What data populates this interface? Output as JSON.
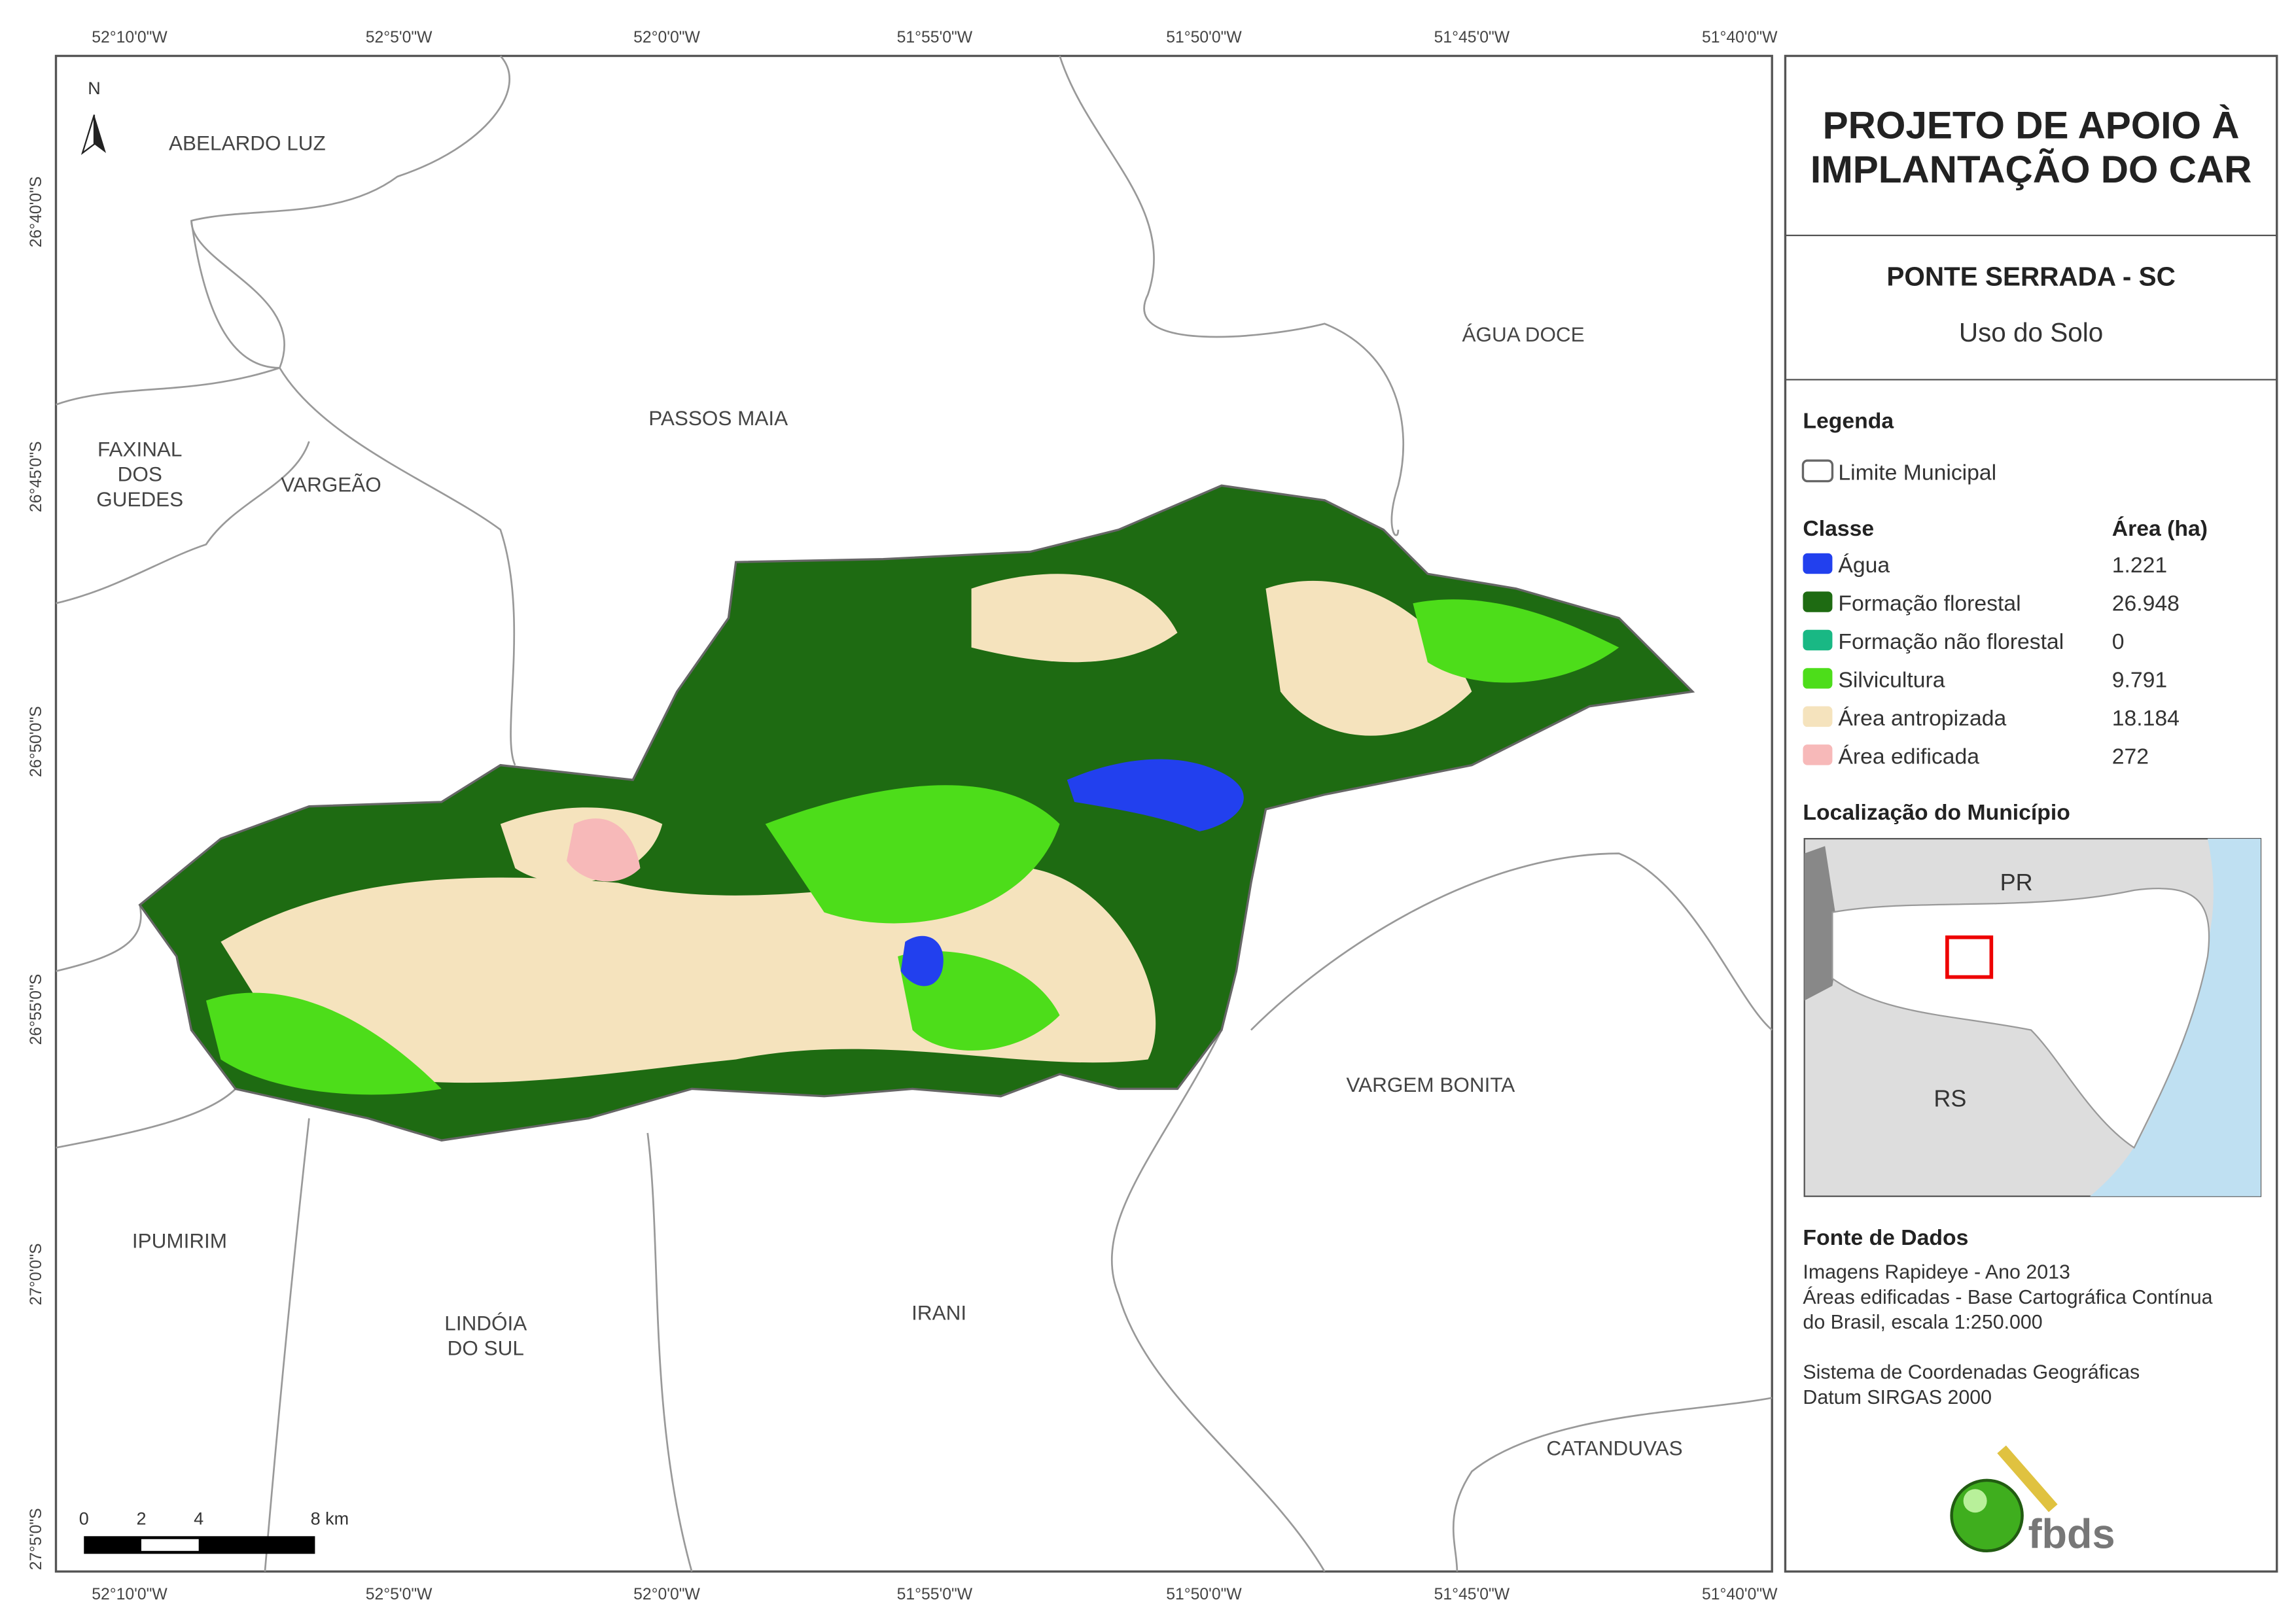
{
  "coords": {
    "top": [
      "52°10'0\"W",
      "52°5'0\"W",
      "52°0'0\"W",
      "51°55'0\"W",
      "51°50'0\"W",
      "51°45'0\"W",
      "51°40'0\"W"
    ],
    "left": [
      "26°40'0\"S",
      "26°45'0\"S",
      "26°50'0\"S",
      "26°55'0\"S",
      "27°0'0\"S",
      "27°5'0\"S"
    ]
  },
  "municipalities": [
    {
      "label": "ABELARDO LUZ"
    },
    {
      "label": "ÁGUA DOCE"
    },
    {
      "label": "PASSOS MAIA"
    },
    {
      "label": "FAXINAL"
    },
    {
      "label": "DOS"
    },
    {
      "label": "GUEDES"
    },
    {
      "label": "VARGEÃO"
    },
    {
      "label": "VARGEM BONITA"
    },
    {
      "label": "IPUMIRIM"
    },
    {
      "label": "LINDÓIA"
    },
    {
      "label": "DO SUL"
    },
    {
      "label": "IRANI"
    },
    {
      "label": "CATANDUVAS"
    }
  ],
  "north": "N",
  "scale": [
    "0",
    "2",
    "4",
    "8 km"
  ],
  "panel": {
    "title_lines": [
      "PROJETO DE APOIO À",
      "IMPLANTAÇÃO DO CAR"
    ],
    "place": "PONTE SERRADA - SC",
    "subtitle": "Uso do Solo",
    "legend_title": "Legenda",
    "boundary": "Limite Municipal",
    "class_header": "Classe",
    "area_header": "Área (ha)",
    "classes": [
      {
        "name": "Água",
        "area": "1.221",
        "color": "#2240ee"
      },
      {
        "name": "Formação florestal",
        "area": "26.948",
        "color": "#1e6b12"
      },
      {
        "name": "Formação não florestal",
        "area": "0",
        "color": "#19b884"
      },
      {
        "name": "Silvicultura",
        "area": "9.791",
        "color": "#4ddd1a"
      },
      {
        "name": "Área antropizada",
        "area": "18.184",
        "color": "#f5e3bd"
      },
      {
        "name": "Área edificada",
        "area": "272",
        "color": "#f7b9b9"
      }
    ],
    "location_title": "Localização do Município",
    "inset_labels": [
      "PR",
      "RS"
    ],
    "source_title": "Fonte de Dados",
    "source_lines": [
      "Imagens Rapideye - Ano 2013",
      "Áreas edificadas - Base Cartográfica Contínua",
      "do Brasil, escala 1:250.000",
      "",
      "Sistema de Coordenadas Geográficas",
      "Datum SIRGAS 2000"
    ],
    "logo": "fbds"
  }
}
